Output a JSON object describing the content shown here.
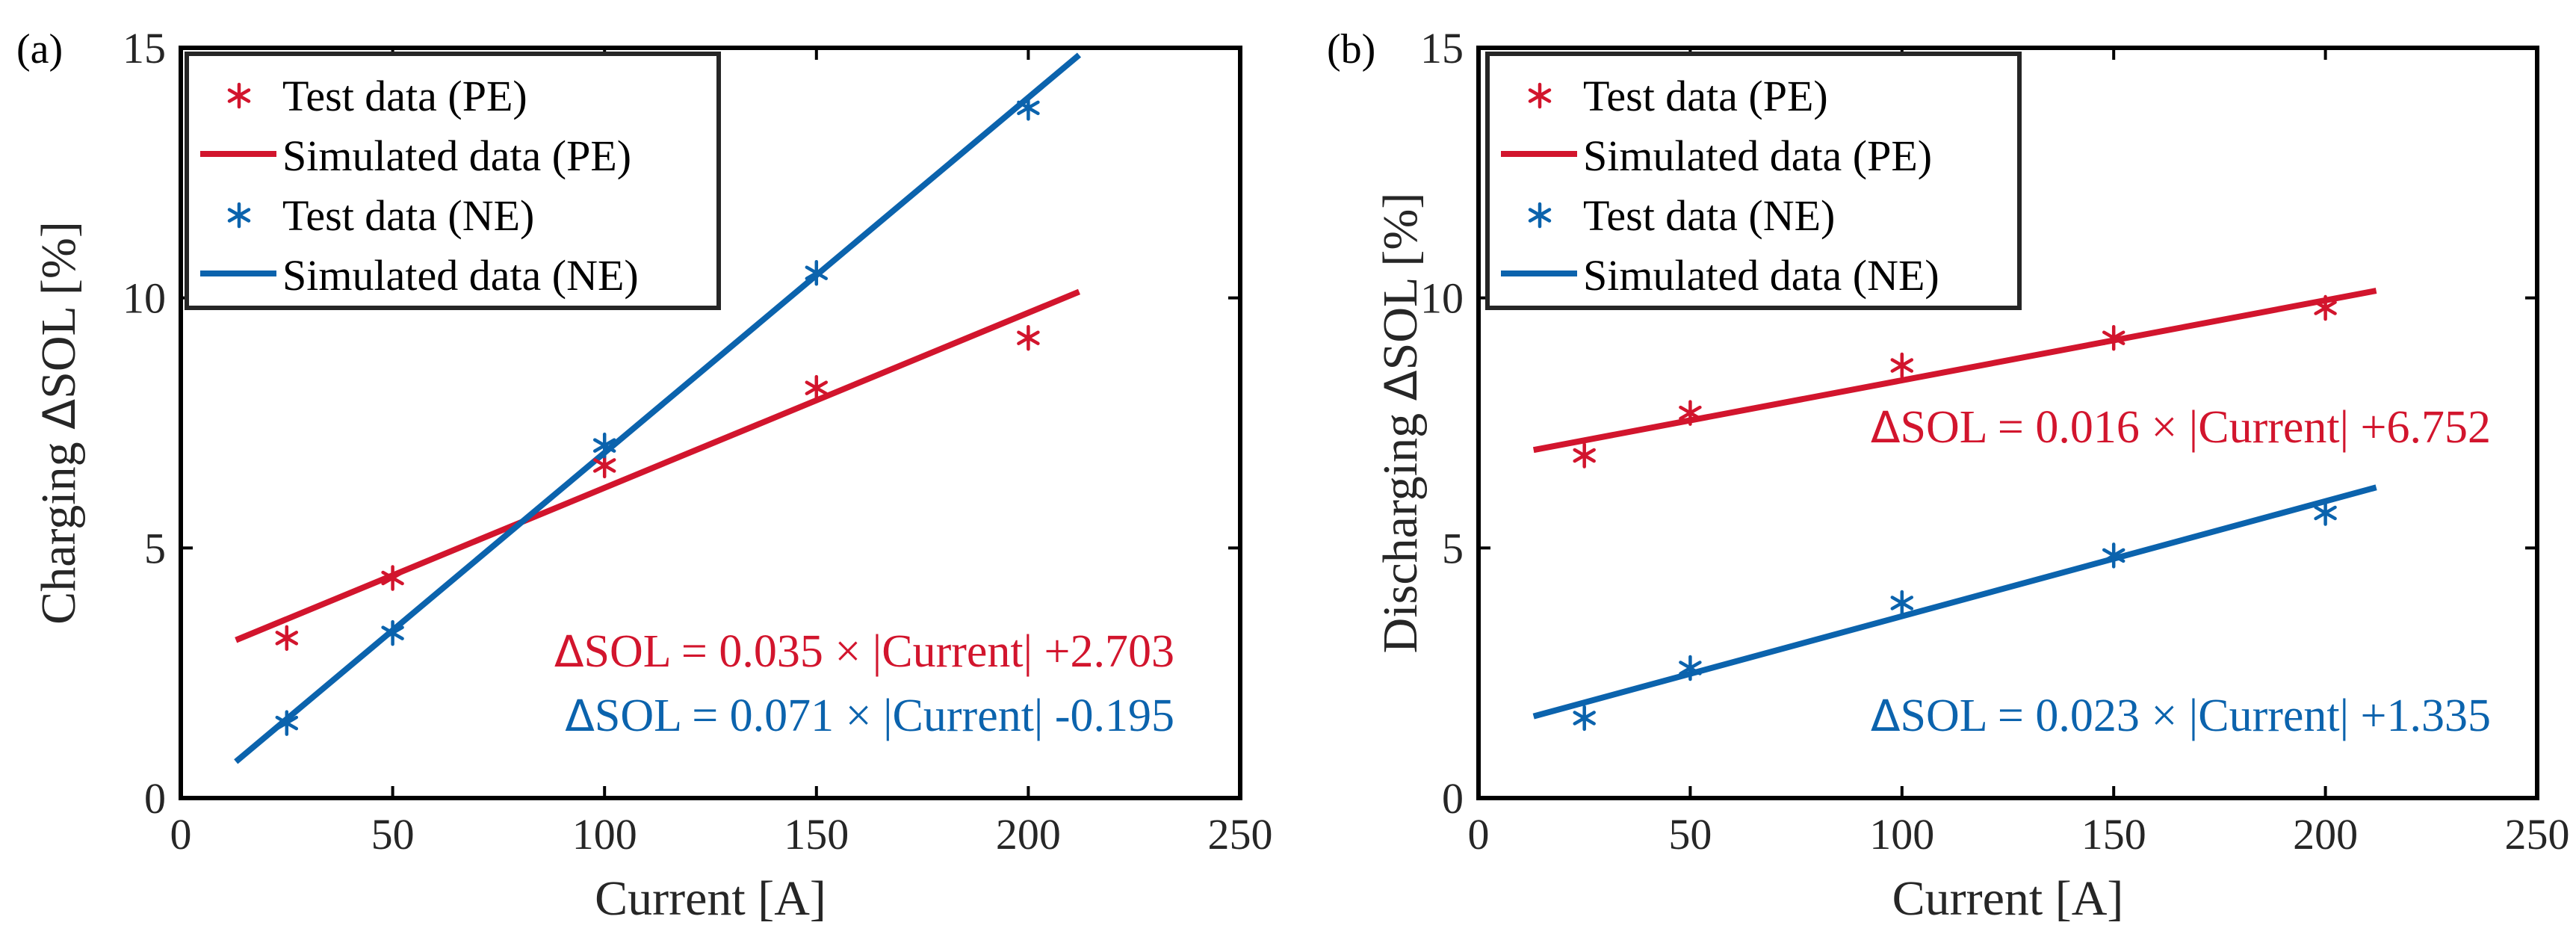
{
  "colors": {
    "pe": "#d2152d",
    "ne": "#0b63ad",
    "axis": "#262626"
  },
  "chart_data": [
    {
      "type": "scatter",
      "panel_label": "(a)",
      "xlabel": "Current [A]",
      "ylabel_prefix": "Charging ",
      "ylabel_symbol": "Δ",
      "ylabel_suffix": "SOL [%]",
      "xlim": [
        0,
        250
      ],
      "ylim": [
        0,
        15
      ],
      "x_ticks": [
        "0",
        "50",
        "100",
        "150",
        "200",
        "250"
      ],
      "y_ticks": [
        "0",
        "5",
        "10",
        "15"
      ],
      "legend": {
        "position": "top-left",
        "entries": [
          "Test data (PE)",
          "Simulated data (PE)",
          "Test data (NE)",
          "Simulated data (NE)"
        ]
      },
      "series": [
        {
          "name": "Test data (PE)",
          "kind": "points",
          "color": "pe",
          "x": [
            25,
            50,
            100,
            150,
            200
          ],
          "y": [
            3.2,
            4.4,
            6.65,
            8.2,
            9.2
          ]
        },
        {
          "name": "Simulated data (PE)",
          "kind": "line",
          "color": "pe",
          "x": [
            13,
            212
          ],
          "slope": 0.035,
          "intercept": 2.703
        },
        {
          "name": "Test data (NE)",
          "kind": "points",
          "color": "ne",
          "x": [
            25,
            50,
            100,
            150,
            200
          ],
          "y": [
            1.5,
            3.3,
            7.05,
            10.5,
            13.8
          ]
        },
        {
          "name": "Simulated data (NE)",
          "kind": "line",
          "color": "ne",
          "x": [
            13,
            212
          ],
          "slope": 0.071,
          "intercept": -0.195
        }
      ],
      "annotations": [
        {
          "color": "pe",
          "delta": "Δ",
          "text": "SOL = 0.035 × |Current| +2.703"
        },
        {
          "color": "ne",
          "delta": "Δ",
          "text": "SOL = 0.071 × |Current| -0.195"
        }
      ]
    },
    {
      "type": "scatter",
      "panel_label": "(b)",
      "xlabel": "Current [A]",
      "ylabel_prefix": "Discharging ",
      "ylabel_symbol": "Δ",
      "ylabel_suffix": "SOL [%]",
      "xlim": [
        0,
        250
      ],
      "ylim": [
        0,
        15
      ],
      "x_ticks": [
        "0",
        "50",
        "100",
        "150",
        "200",
        "250"
      ],
      "y_ticks": [
        "0",
        "5",
        "10",
        "15"
      ],
      "legend": {
        "position": "top-left",
        "entries": [
          "Test data (PE)",
          "Simulated data (PE)",
          "Test data (NE)",
          "Simulated data (NE)"
        ]
      },
      "series": [
        {
          "name": "Test data (PE)",
          "kind": "points",
          "color": "pe",
          "x": [
            25,
            50,
            100,
            150,
            200
          ],
          "y": [
            6.85,
            7.7,
            8.65,
            9.2,
            9.8
          ]
        },
        {
          "name": "Simulated data (PE)",
          "kind": "line",
          "color": "pe",
          "x": [
            13,
            212
          ],
          "slope": 0.016,
          "intercept": 6.752
        },
        {
          "name": "Test data (NE)",
          "kind": "points",
          "color": "ne",
          "x": [
            25,
            50,
            100,
            150,
            200
          ],
          "y": [
            1.6,
            2.6,
            3.9,
            4.85,
            5.7
          ]
        },
        {
          "name": "Simulated data (NE)",
          "kind": "line",
          "color": "ne",
          "x": [
            13,
            212
          ],
          "slope": 0.023,
          "intercept": 1.335
        }
      ],
      "annotations": [
        {
          "color": "pe",
          "delta": "Δ",
          "text": "SOL = 0.016 × |Current| +6.752"
        },
        {
          "color": "ne",
          "delta": "Δ",
          "text": "SOL = 0.023 × |Current| +1.335"
        }
      ]
    }
  ]
}
